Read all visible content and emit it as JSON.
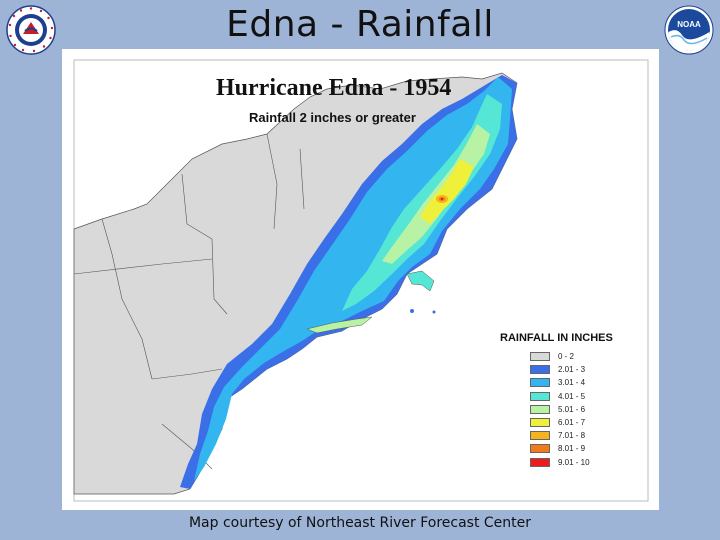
{
  "slide": {
    "title": "Edna - Rainfall",
    "caption": "Map courtesy of Northeast River Forecast Center"
  },
  "logos": {
    "nws_ring_text": "NATIONAL WEATHER SERVICE",
    "noaa_text": "NOAA"
  },
  "map": {
    "title": "Hurricane Edna - 1954",
    "subtitle": "Rainfall 2 inches or greater"
  },
  "legend": {
    "title": "RAINFALL IN INCHES",
    "items": [
      {
        "label": "0 - 2",
        "color": "#d9d9d9"
      },
      {
        "label": "2.01 - 3",
        "color": "#3b6fe8"
      },
      {
        "label": "3.01 - 4",
        "color": "#33b6ef"
      },
      {
        "label": "4.01 - 5",
        "color": "#55e6d6"
      },
      {
        "label": "5.01 - 6",
        "color": "#b8f2a4"
      },
      {
        "label": "6.01 - 7",
        "color": "#eef03a"
      },
      {
        "label": "7.01 - 8",
        "color": "#f3b41d"
      },
      {
        "label": "8.01 - 9",
        "color": "#f17a1a"
      },
      {
        "label": "9.01 - 10",
        "color": "#ee1c1c"
      }
    ]
  },
  "colors": {
    "slide_background": "#9db4d6",
    "land": "#d9d9d9",
    "water": "#ffffff"
  }
}
